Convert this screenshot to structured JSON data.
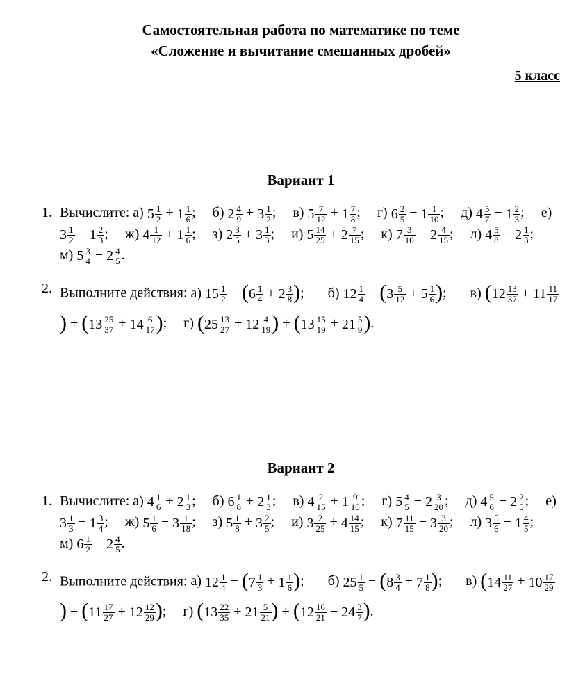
{
  "colors": {
    "text": "#000000",
    "bg": "#ffffff"
  },
  "title_line1": "Самостоятельная работа по математике по теме",
  "title_line2": "«Сложение и вычитание смешанных дробей»",
  "grade": "5 класс",
  "v1": {
    "heading": "Вариант 1",
    "t1_num": "1.",
    "t1_lead": "Вычислите: ",
    "t1": {
      "a": {
        "lbl": "а)",
        "f1": {
          "w": "5",
          "n": "1",
          "d": "2"
        },
        "op": "+",
        "f2": {
          "w": "1",
          "n": "1",
          "d": "6"
        },
        "term": ";"
      },
      "b": {
        "lbl": "б)",
        "f1": {
          "w": "2",
          "n": "4",
          "d": "9"
        },
        "op": "+",
        "f2": {
          "w": "3",
          "n": "1",
          "d": "2"
        },
        "term": ";"
      },
      "v": {
        "lbl": "в)",
        "f1": {
          "w": "5",
          "n": "7",
          "d": "12"
        },
        "op": "+",
        "f2": {
          "w": "1",
          "n": "7",
          "d": "8"
        },
        "term": ";"
      },
      "g": {
        "lbl": "г)",
        "f1": {
          "w": "6",
          "n": "2",
          "d": "5"
        },
        "op": "−",
        "f2": {
          "w": "1",
          "n": "1",
          "d": "10"
        },
        "term": ";"
      },
      "d": {
        "lbl": "д)",
        "f1": {
          "w": "4",
          "n": "5",
          "d": "7"
        },
        "op": "−",
        "f2": {
          "w": "1",
          "n": "2",
          "d": "3"
        },
        "term": ";"
      },
      "e": {
        "lbl": "е)",
        "f1": {
          "w": "3",
          "n": "1",
          "d": "2"
        },
        "op": "−",
        "f2": {
          "w": "1",
          "n": "2",
          "d": "3"
        },
        "term": ";"
      },
      "zh": {
        "lbl": "ж)",
        "f1": {
          "w": "4",
          "n": "1",
          "d": "12"
        },
        "op": "+",
        "f2": {
          "w": "1",
          "n": "1",
          "d": "6"
        },
        "term": ";"
      },
      "z": {
        "lbl": "з)",
        "f1": {
          "w": "2",
          "n": "3",
          "d": "5"
        },
        "op": "+",
        "f2": {
          "w": "3",
          "n": "1",
          "d": "3"
        },
        "term": ";"
      },
      "i": {
        "lbl": "и)",
        "f1": {
          "w": "5",
          "n": "14",
          "d": "25"
        },
        "op": "+",
        "f2": {
          "w": "2",
          "n": "7",
          "d": "15"
        },
        "term": ";"
      },
      "k": {
        "lbl": "к)",
        "f1": {
          "w": "7",
          "n": "3",
          "d": "10"
        },
        "op": "−",
        "f2": {
          "w": "2",
          "n": "4",
          "d": "15"
        },
        "term": ";"
      },
      "l": {
        "lbl": "л)",
        "f1": {
          "w": "4",
          "n": "5",
          "d": "8"
        },
        "op": "−",
        "f2": {
          "w": "2",
          "n": "1",
          "d": "3"
        },
        "term": ";"
      },
      "m": {
        "lbl": "м)",
        "f1": {
          "w": "5",
          "n": "3",
          "d": "4"
        },
        "op": "−",
        "f2": {
          "w": "2",
          "n": "4",
          "d": "5"
        },
        "term": "."
      }
    },
    "t2_num": "2.",
    "t2_lead": "Выполните действия:   ",
    "t2a_lbl": "а)",
    "t2a": {
      "A": {
        "w": "15",
        "n": "1",
        "d": "2"
      },
      "op": "−",
      "B": {
        "w": "6",
        "n": "1",
        "d": "4"
      },
      "iop": "+",
      "C": {
        "w": "2",
        "n": "3",
        "d": "8"
      },
      "term": ";"
    },
    "t2b_lbl": "б)",
    "t2b": {
      "A": {
        "w": "12",
        "n": "1",
        "d": "4"
      },
      "op": "−",
      "B": {
        "w": "3",
        "n": "5",
        "d": "12"
      },
      "iop": "+",
      "C": {
        "w": "5",
        "n": "1",
        "d": "6"
      },
      "term": ";"
    },
    "t2v_lbl": "в)",
    "t2v": {
      "p1": {
        "A": {
          "w": "12",
          "n": "13",
          "d": "37"
        },
        "op": "+",
        "B": {
          "w": "11",
          "n": "11",
          "d": "17"
        }
      },
      "jop": "+",
      "p2": {
        "A": {
          "w": "13",
          "n": "25",
          "d": "37"
        },
        "op": "+",
        "B": {
          "w": "14",
          "n": "6",
          "d": "17"
        }
      },
      "term": ";"
    },
    "t2g_lbl": "г)",
    "t2g": {
      "p1": {
        "A": {
          "w": "25",
          "n": "13",
          "d": "27"
        },
        "op": "+",
        "B": {
          "w": "12",
          "n": "4",
          "d": "19"
        }
      },
      "jop": "+",
      "p2": {
        "A": {
          "w": "13",
          "n": "15",
          "d": "19"
        },
        "op": "+",
        "B": {
          "w": "21",
          "n": "5",
          "d": "9"
        }
      },
      "term": "."
    }
  },
  "v2": {
    "heading": "Вариант 2",
    "t1_num": "1.",
    "t1_lead": "Вычислите: ",
    "t1": {
      "a": {
        "lbl": "а)",
        "f1": {
          "w": "4",
          "n": "1",
          "d": "6"
        },
        "op": "+",
        "f2": {
          "w": "2",
          "n": "1",
          "d": "3"
        },
        "term": ";"
      },
      "b": {
        "lbl": "б)",
        "f1": {
          "w": "6",
          "n": "1",
          "d": "8"
        },
        "op": "+",
        "f2": {
          "w": "2",
          "n": "1",
          "d": "3"
        },
        "term": ";"
      },
      "v": {
        "lbl": "в)",
        "f1": {
          "w": "4",
          "n": "2",
          "d": "15"
        },
        "op": "+",
        "f2": {
          "w": "1",
          "n": "9",
          "d": "10"
        },
        "term": ";"
      },
      "g": {
        "lbl": "г)",
        "f1": {
          "w": "5",
          "n": "4",
          "d": "5"
        },
        "op": "−",
        "f2": {
          "w": "2",
          "n": "3",
          "d": "20"
        },
        "term": ";"
      },
      "d": {
        "lbl": "д)",
        "f1": {
          "w": "4",
          "n": "5",
          "d": "6"
        },
        "op": "−",
        "f2": {
          "w": "2",
          "n": "2",
          "d": "5"
        },
        "term": ";"
      },
      "e": {
        "lbl": "е)",
        "f1": {
          "w": "3",
          "n": "1",
          "d": "3"
        },
        "op": "−",
        "f2": {
          "w": "1",
          "n": "3",
          "d": "4"
        },
        "term": ";"
      },
      "zh": {
        "lbl": "ж)",
        "f1": {
          "w": "5",
          "n": "1",
          "d": "6"
        },
        "op": "+",
        "f2": {
          "w": "3",
          "n": "1",
          "d": "18"
        },
        "term": ";"
      },
      "z": {
        "lbl": "з)",
        "f1": {
          "w": "5",
          "n": "1",
          "d": "8"
        },
        "op": "+",
        "f2": {
          "w": "3",
          "n": "2",
          "d": "5"
        },
        "term": ";"
      },
      "i": {
        "lbl": "и)",
        "f1": {
          "w": "3",
          "n": "2",
          "d": "25"
        },
        "op": "+",
        "f2": {
          "w": "4",
          "n": "14",
          "d": "15"
        },
        "term": ";"
      },
      "k": {
        "lbl": "к)",
        "f1": {
          "w": "7",
          "n": "11",
          "d": "15"
        },
        "op": "−",
        "f2": {
          "w": "3",
          "n": "3",
          "d": "20"
        },
        "term": ";"
      },
      "l": {
        "lbl": "л)",
        "f1": {
          "w": "3",
          "n": "5",
          "d": "6"
        },
        "op": "−",
        "f2": {
          "w": "1",
          "n": "4",
          "d": "5"
        },
        "term": ";"
      },
      "m": {
        "lbl": "м)",
        "f1": {
          "w": "6",
          "n": "1",
          "d": "2"
        },
        "op": "−",
        "f2": {
          "w": "2",
          "n": "4",
          "d": "5"
        },
        "term": "."
      }
    },
    "t2_num": "2.",
    "t2_lead": "Выполните действия:   ",
    "t2a_lbl": "а)",
    "t2a": {
      "A": {
        "w": "12",
        "n": "1",
        "d": "4"
      },
      "op": "−",
      "B": {
        "w": "7",
        "n": "1",
        "d": "3"
      },
      "iop": "+",
      "C": {
        "w": "1",
        "n": "1",
        "d": "6"
      },
      "term": ";"
    },
    "t2b_lbl": "б)",
    "t2b": {
      "A": {
        "w": "25",
        "n": "1",
        "d": "5"
      },
      "op": "−",
      "B": {
        "w": "8",
        "n": "3",
        "d": "4"
      },
      "iop": "+",
      "C": {
        "w": "7",
        "n": "1",
        "d": "8"
      },
      "term": ";"
    },
    "t2v_lbl": "в)",
    "t2v": {
      "p1": {
        "A": {
          "w": "14",
          "n": "11",
          "d": "27"
        },
        "op": "+",
        "B": {
          "w": "10",
          "n": "17",
          "d": "29"
        }
      },
      "jop": "+",
      "p2": {
        "A": {
          "w": "11",
          "n": "17",
          "d": "27"
        },
        "op": "+",
        "B": {
          "w": "12",
          "n": "12",
          "d": "29"
        }
      },
      "term": ";"
    },
    "t2g_lbl": "г)",
    "t2g": {
      "p1": {
        "A": {
          "w": "13",
          "n": "22",
          "d": "35"
        },
        "op": "+",
        "B": {
          "w": "21",
          "n": "5",
          "d": "21"
        }
      },
      "jop": "+",
      "p2": {
        "A": {
          "w": "12",
          "n": "16",
          "d": "21"
        },
        "op": "+",
        "B": {
          "w": "24",
          "n": "3",
          "d": "7"
        }
      },
      "term": "."
    }
  }
}
